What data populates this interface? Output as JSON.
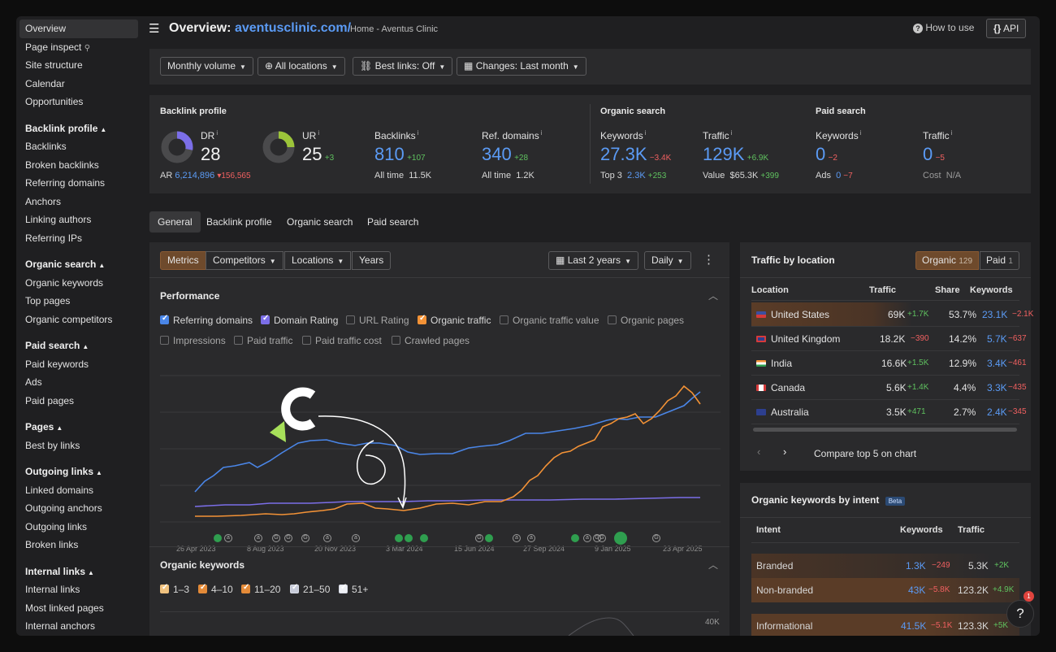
{
  "sidebar": {
    "items": [
      "Overview",
      "Page inspect",
      "Site structure",
      "Calendar",
      "Opportunities"
    ],
    "sections": [
      {
        "title": "Backlink profile",
        "items": [
          "Backlinks",
          "Broken backlinks",
          "Referring domains",
          "Anchors",
          "Linking authors",
          "Referring IPs"
        ]
      },
      {
        "title": "Organic search",
        "items": [
          "Organic keywords",
          "Top pages",
          "Organic competitors"
        ]
      },
      {
        "title": "Paid search",
        "items": [
          "Paid keywords",
          "Ads",
          "Paid pages"
        ]
      },
      {
        "title": "Pages",
        "items": [
          "Best by links"
        ]
      },
      {
        "title": "Outgoing links",
        "items": [
          "Linked domains",
          "Outgoing anchors",
          "Outgoing links",
          "Broken links"
        ]
      },
      {
        "title": "Internal links",
        "items": [
          "Internal links",
          "Most linked pages",
          "Internal anchors"
        ]
      }
    ]
  },
  "header": {
    "title_prefix": "Overview:",
    "domain": "aventusclinic.com/",
    "breadcrumb": "Home - Aventus Clinic",
    "how_to_use": "How to use",
    "api": "API"
  },
  "filters": {
    "volume": "Monthly volume",
    "locations": "All locations",
    "best_links": "Best links: Off",
    "changes": "Changes: Last month"
  },
  "backlink_profile": {
    "title": "Backlink profile",
    "dr_label": "DR",
    "dr_value": "28",
    "dr_fill": 0.28,
    "ar_label": "AR",
    "ar_value": "6,214,896",
    "ar_delta": "156,565",
    "ur_label": "UR",
    "ur_value": "25",
    "ur_delta": "+3",
    "ur_fill": 0.25,
    "backlinks_label": "Backlinks",
    "backlinks_value": "810",
    "backlinks_delta": "+107",
    "backlinks_alltime_label": "All time",
    "backlinks_alltime": "11.5K",
    "refdomains_label": "Ref. domains",
    "refdomains_value": "340",
    "refdomains_delta": "+28",
    "refdomains_alltime_label": "All time",
    "refdomains_alltime": "1.2K"
  },
  "organic_search": {
    "title": "Organic search",
    "keywords_label": "Keywords",
    "keywords_value": "27.3K",
    "keywords_delta": "−3.4K",
    "top3_label": "Top 3",
    "top3_value": "2.3K",
    "top3_delta": "+253",
    "traffic_label": "Traffic",
    "traffic_value": "129K",
    "traffic_delta": "+6.9K",
    "value_label": "Value",
    "value_value": "$65.3K",
    "value_delta": "+399"
  },
  "paid_search": {
    "title": "Paid search",
    "keywords_label": "Keywords",
    "keywords_value": "0",
    "keywords_delta": "−2",
    "ads_label": "Ads",
    "ads_value": "0",
    "ads_delta": "−7",
    "traffic_label": "Traffic",
    "traffic_value": "0",
    "traffic_delta": "−5",
    "cost_label": "Cost",
    "cost_value": "N/A"
  },
  "tabs": [
    "General",
    "Backlink profile",
    "Organic search",
    "Paid search"
  ],
  "performance": {
    "toolbar": [
      "Metrics",
      "Competitors",
      "Locations",
      "Years"
    ],
    "range": "Last 2 years",
    "interval": "Daily",
    "title": "Performance",
    "options_row1": [
      "Referring domains",
      "Domain Rating",
      "URL Rating",
      "Organic traffic",
      "Organic traffic value",
      "Organic pages"
    ],
    "options_row2": [
      "Impressions",
      "Paid traffic",
      "Paid traffic cost",
      "Crawled pages"
    ],
    "x_ticks": [
      "26 Apr 2023",
      "8 Aug 2023",
      "20 Nov 2023",
      "3 Mar 2024",
      "15 Jun 2024",
      "27 Sep 2024",
      "9 Jan 2025",
      "23 Apr 2025"
    ],
    "colors": {
      "referring_domains": "#4a86e8",
      "domain_rating": "#7b6ee8",
      "organic_traffic": "#f39236"
    }
  },
  "organic_keywords": {
    "title": "Organic keywords",
    "buckets": [
      "1–3",
      "4–10",
      "11–20",
      "21–50",
      "51+"
    ],
    "y_max_label": "40K"
  },
  "traffic_by_location": {
    "title": "Traffic by location",
    "organic_label": "Organic",
    "organic_count": "129",
    "paid_label": "Paid",
    "paid_count": "1",
    "columns": [
      "Location",
      "Traffic",
      "Share",
      "Keywords"
    ],
    "rows": [
      {
        "name": "United States",
        "traffic": "69K",
        "traffic_delta": "+1.7K",
        "share": "53.7%",
        "keywords": "23.1K",
        "kw_delta": "−2.1K"
      },
      {
        "name": "United Kingdom",
        "traffic": "18.2K",
        "traffic_delta": "−390",
        "share": "14.2%",
        "keywords": "5.7K",
        "kw_delta": "−637"
      },
      {
        "name": "India",
        "traffic": "16.6K",
        "traffic_delta": "+1.5K",
        "share": "12.9%",
        "keywords": "3.4K",
        "kw_delta": "−461"
      },
      {
        "name": "Canada",
        "traffic": "5.6K",
        "traffic_delta": "+1.4K",
        "share": "4.4%",
        "keywords": "3.3K",
        "kw_delta": "−435"
      },
      {
        "name": "Australia",
        "traffic": "3.5K",
        "traffic_delta": "+471",
        "share": "2.7%",
        "keywords": "2.4K",
        "kw_delta": "−345"
      }
    ],
    "compare": "Compare top 5 on chart"
  },
  "keywords_by_intent": {
    "title": "Organic keywords by intent",
    "badge": "Beta",
    "columns": [
      "Intent",
      "Keywords",
      "Traffic"
    ],
    "rows": [
      {
        "name": "Branded",
        "keywords": "1.3K",
        "kw_delta": "−249",
        "traffic": "5.3K",
        "traffic_delta": "+2K"
      },
      {
        "name": "Non-branded",
        "keywords": "43K",
        "kw_delta": "−5.8K",
        "traffic": "123.2K",
        "traffic_delta": "+4.9K"
      },
      {
        "name": "Informational",
        "keywords": "41.5K",
        "kw_delta": "−5.1K",
        "traffic": "123.3K",
        "traffic_delta": "+5K"
      }
    ]
  },
  "help_badge": "1"
}
